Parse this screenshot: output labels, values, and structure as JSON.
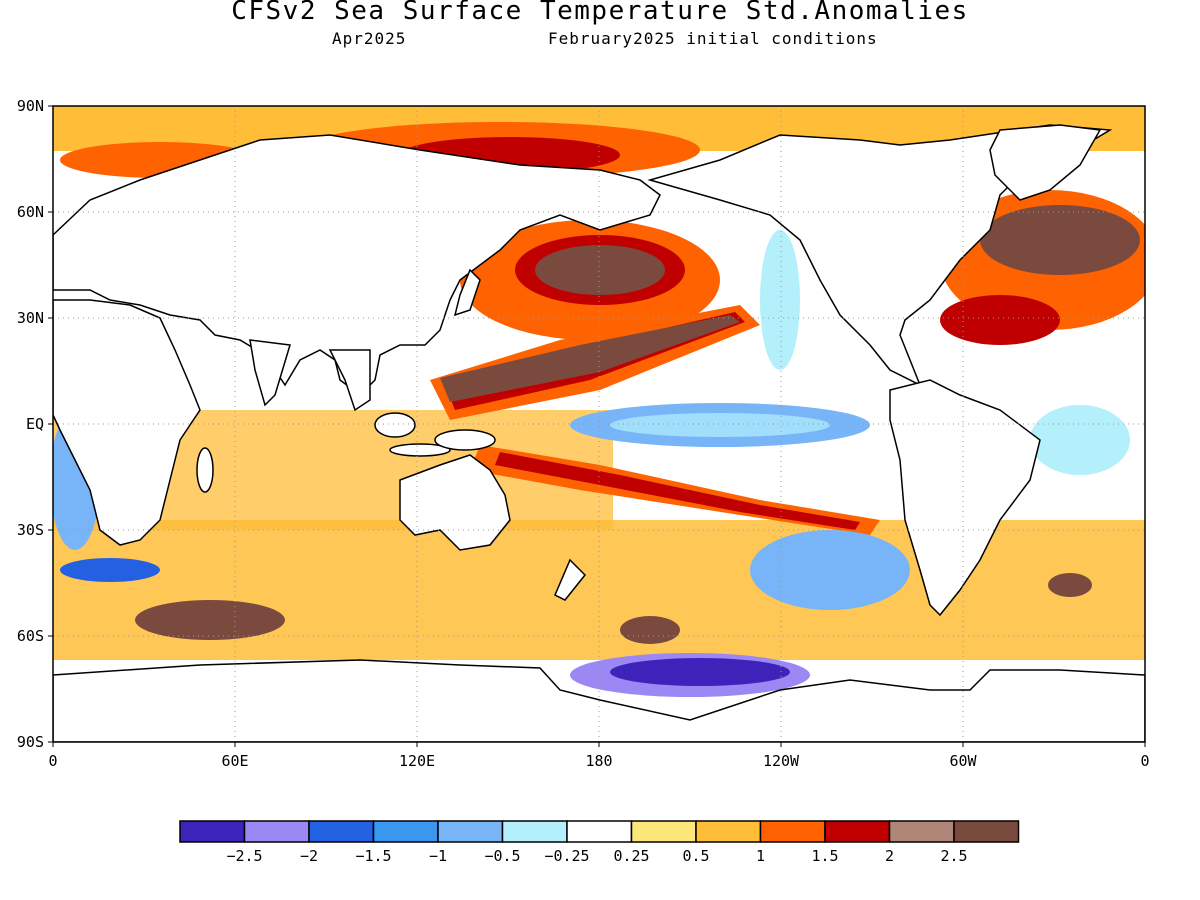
{
  "header": {
    "title": "CFSv2 Sea Surface Temperature Std.Anomalies",
    "valid_month": "Apr2025",
    "init_conditions": "February2025 initial conditions"
  },
  "map": {
    "lat_labels": [
      "90N",
      "60N",
      "30N",
      "EQ",
      "30S",
      "60S",
      "90S"
    ],
    "lon_labels": [
      "0",
      "60E",
      "120E",
      "180",
      "120W",
      "60W",
      "0"
    ],
    "gridlines": "dotted"
  },
  "legend": {
    "colors": [
      "#3d23ba",
      "#9b88f4",
      "#2461e2",
      "#3b96f0",
      "#77b5f8",
      "#b4effc",
      "#ffffff",
      "#fde77a",
      "#ffbd38",
      "#ff6200",
      "#c00000",
      "#b08679",
      "#7a4a3f"
    ],
    "labels": [
      "−2.5",
      "−2",
      "−1.5",
      "−1",
      "−0.5",
      "−0.25",
      "0.25",
      "0.5",
      "1",
      "1.5",
      "2",
      "2.5"
    ]
  }
}
